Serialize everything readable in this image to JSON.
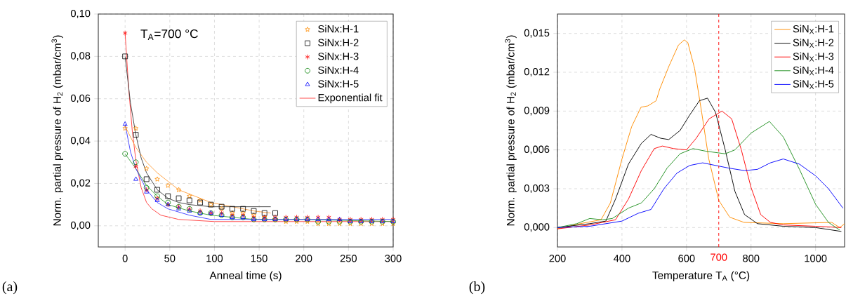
{
  "chart_data": [
    {
      "type": "scatter",
      "xlabel": "Anneal time (s)",
      "ylabel": "Norm. partial pressure of H$_{2}$ (mbar/cm$^{3}$)",
      "x": [
        0,
        12,
        24,
        36,
        48,
        60,
        72,
        84,
        96,
        108,
        120,
        132,
        144,
        156,
        168,
        180,
        192,
        204,
        216,
        228,
        240,
        252,
        264,
        276,
        288,
        300
      ],
      "xlim": [
        -30,
        300
      ],
      "ylim": [
        -0.01,
        0.1
      ],
      "xticks": [
        0,
        50,
        100,
        150,
        200,
        250,
        300
      ],
      "yticks": [
        {
          "value": 0,
          "label": "0,00"
        },
        {
          "value": 0.02,
          "label": "0,02"
        },
        {
          "value": 0.04,
          "label": "0,04"
        },
        {
          "value": 0.06,
          "label": "0,06"
        },
        {
          "value": 0.08,
          "label": "0,08"
        },
        {
          "value": 0.1,
          "label": "0,10"
        }
      ],
      "grid": true,
      "legend": "top right",
      "annotations": [
        "T$_{A}$=700 °C",
        "(a)"
      ],
      "series": [
        {
          "name": "SiNx:H-1",
          "color": "#ff8c00",
          "marker": "star",
          "values": [
            0.046,
            0.046,
            0.027,
            0.022,
            0.019,
            0.017,
            0.014,
            0.012,
            0.01,
            0.008,
            0.006,
            0.006,
            0.005,
            0.004,
            0.003,
            0.002,
            0.002,
            0.002,
            0.001,
            0.001,
            0.001,
            0.001,
            0.001,
            0.001,
            0.001,
            0.001
          ]
        },
        {
          "name": "SiNx:H-2",
          "color": "#000000",
          "marker": "square",
          "x": [
            0,
            12,
            24,
            36,
            48,
            60,
            72,
            84,
            96,
            108,
            120,
            132,
            144,
            156,
            168
          ],
          "values": [
            0.08,
            0.043,
            0.022,
            0.017,
            0.014,
            0.013,
            0.012,
            0.011,
            0.01,
            0.009,
            0.008,
            0.008,
            0.007,
            0.006,
            0.006
          ]
        },
        {
          "name": "SiNx:H-3",
          "color": "#ff0000",
          "marker": "cross",
          "values": [
            0.091,
            0.028,
            0.017,
            0.013,
            0.01,
            0.009,
            0.008,
            0.007,
            0.006,
            0.006,
            0.005,
            0.005,
            0.004,
            0.004,
            0.004,
            0.004,
            0.004,
            0.004,
            0.004,
            0.004,
            0.003,
            0.003,
            0.003,
            0.003,
            0.003,
            0.003
          ]
        },
        {
          "name": "SiNx:H-4",
          "color": "#008000",
          "marker": "circle",
          "values": [
            0.034,
            0.03,
            0.018,
            0.014,
            0.011,
            0.009,
            0.008,
            0.006,
            0.006,
            0.005,
            0.004,
            0.004,
            0.003,
            0.003,
            0.003,
            0.003,
            0.003,
            0.003,
            0.002,
            0.002,
            0.002,
            0.002,
            0.002,
            0.002,
            0.002,
            0.002
          ]
        },
        {
          "name": "SiNx:H-5",
          "color": "#0000ff",
          "marker": "triangle",
          "values": [
            0.048,
            0.022,
            0.016,
            0.012,
            0.01,
            0.008,
            0.007,
            0.006,
            0.006,
            0.005,
            0.004,
            0.004,
            0.003,
            0.003,
            0.003,
            0.003,
            0.003,
            0.003,
            0.003,
            0.003,
            0.003,
            0.002,
            0.002,
            0.002,
            0.002,
            0.002
          ]
        },
        {
          "name": "Exponential fit",
          "type": "line",
          "color": "#ff4040",
          "x": [
            0,
            4,
            8,
            12,
            18,
            24,
            30,
            40,
            60,
            100,
            300
          ],
          "values": [
            0.091,
            0.065,
            0.045,
            0.031,
            0.018,
            0.011,
            0.008,
            0.005,
            0.003,
            0.002,
            0.002
          ]
        },
        {
          "type": "line",
          "color": "#ffa040",
          "x": [
            0,
            12,
            24,
            36,
            48,
            60,
            72,
            96,
            120,
            144,
            163
          ],
          "values": [
            0.047,
            0.037,
            0.03,
            0.025,
            0.021,
            0.017,
            0.015,
            0.011,
            0.009,
            0.007,
            0.006
          ]
        },
        {
          "type": "line",
          "color": "#404040",
          "x": [
            0,
            6,
            12,
            18,
            24,
            36,
            48,
            60,
            72,
            96,
            120,
            163
          ],
          "values": [
            0.08,
            0.058,
            0.043,
            0.032,
            0.025,
            0.017,
            0.013,
            0.011,
            0.01,
            0.009,
            0.009,
            0.009
          ]
        },
        {
          "type": "line",
          "color": "#40a040",
          "x": [
            0,
            12,
            24,
            36,
            48,
            72,
            96,
            144,
            200,
            300
          ],
          "values": [
            0.034,
            0.027,
            0.019,
            0.014,
            0.01,
            0.007,
            0.005,
            0.003,
            0.003,
            0.002
          ]
        },
        {
          "type": "line",
          "color": "#4040ff",
          "x": [
            0,
            6,
            12,
            24,
            36,
            48,
            72,
            96,
            144,
            300
          ],
          "values": [
            0.048,
            0.035,
            0.027,
            0.017,
            0.011,
            0.008,
            0.005,
            0.003,
            0.003,
            0.003
          ]
        }
      ]
    },
    {
      "type": "line",
      "xlabel": "Temperature T$_{A}$ (°C)",
      "ylabel": "Norm. partial pressure of H$_{2}$ (mbar/cm$^{3}$)",
      "xlim": [
        200,
        1090
      ],
      "ylim": [
        -0.0015,
        0.0165
      ],
      "xticks": [
        200,
        400,
        600,
        800,
        1000
      ],
      "yticks": [
        {
          "value": 0,
          "label": "0,000"
        },
        {
          "value": 0.003,
          "label": "0,003"
        },
        {
          "value": 0.006,
          "label": "0,006"
        },
        {
          "value": 0.009,
          "label": "0,009"
        },
        {
          "value": 0.012,
          "label": "0,012"
        },
        {
          "value": 0.015,
          "label": "0,015"
        }
      ],
      "grid": true,
      "legend": "top right",
      "line_style": "solid",
      "annotations": [
        "(b)"
      ],
      "ref_lines": [
        {
          "axis": "x",
          "value": 700,
          "label": "700",
          "color": "#ff0000",
          "line_style": "dashed"
        }
      ],
      "series": [
        {
          "name": "SiN$_{X}$:H-1",
          "color": "#ff8c00",
          "x": [
            200,
            270,
            335,
            364,
            400,
            430,
            459,
            480,
            506,
            517,
            546,
            575,
            593,
            604,
            625,
            647,
            669,
            700,
            734,
            778,
            900,
            1050,
            1075,
            1090
          ],
          "values": [
            -0.0001,
            0.0003,
            0.0006,
            0.0019,
            0.0053,
            0.0078,
            0.0093,
            0.0094,
            0.0098,
            0.0107,
            0.0125,
            0.0141,
            0.0145,
            0.0143,
            0.0123,
            0.0089,
            0.0053,
            0.0021,
            0.0008,
            0.0004,
            0.0003,
            0.0004,
            0.0,
            0.0003
          ]
        },
        {
          "name": "SiN$_{X}$:H-2",
          "color": "#000000",
          "x": [
            200,
            300,
            350,
            380,
            420,
            460,
            490,
            520,
            545,
            580,
            610,
            640,
            665,
            690,
            720,
            750,
            780,
            820,
            900,
            1000,
            1080
          ],
          "values": [
            0,
            0.0003,
            0.0005,
            0.0022,
            0.0049,
            0.0065,
            0.0072,
            0.0069,
            0.0068,
            0.0075,
            0.0087,
            0.0098,
            0.01,
            0.0089,
            0.006,
            0.0028,
            0.001,
            0.0003,
            0.0001,
            0,
            -0.0003
          ]
        },
        {
          "name": "SiN$_{X}$:H-3",
          "color": "#ff0000",
          "x": [
            200,
            300,
            380,
            420,
            460,
            500,
            525,
            560,
            600,
            630,
            670,
            710,
            740,
            770,
            800,
            830,
            860,
            900,
            1000,
            1080
          ],
          "values": [
            -0.0001,
            0.0002,
            0.0006,
            0.0022,
            0.0044,
            0.0061,
            0.0063,
            0.0061,
            0.006,
            0.0069,
            0.0084,
            0.009,
            0.0084,
            0.006,
            0.0031,
            0.001,
            0.0004,
            0.0002,
            0.0001,
            0.0
          ]
        },
        {
          "name": "SiN$_{X}$:H-4",
          "color": "#1f8f1f",
          "x": [
            200,
            260,
            300,
            340,
            370,
            420,
            460,
            500,
            540,
            580,
            620,
            660,
            720,
            750,
            800,
            857,
            900,
            950,
            1000,
            1040,
            1075
          ],
          "values": [
            0,
            0.0003,
            0.0007,
            0.0006,
            0.0007,
            0.0015,
            0.0019,
            0.003,
            0.0046,
            0.0057,
            0.0061,
            0.0059,
            0.0057,
            0.006,
            0.0073,
            0.0082,
            0.007,
            0.0045,
            0.0018,
            0.0004,
            -0.0002
          ]
        },
        {
          "name": "SiN$_{X}$:H-5",
          "color": "#0000ff",
          "x": [
            200,
            300,
            400,
            450,
            490,
            530,
            570,
            610,
            650,
            690,
            730,
            780,
            820,
            860,
            900,
            950,
            1000,
            1040,
            1070,
            1085
          ],
          "values": [
            0,
            0.0001,
            0.0005,
            0.0011,
            0.0014,
            0.003,
            0.0042,
            0.0048,
            0.005,
            0.0048,
            0.0046,
            0.0044,
            0.0045,
            0.005,
            0.0053,
            0.0049,
            0.004,
            0.003,
            0.002,
            0.0015
          ]
        }
      ]
    }
  ]
}
